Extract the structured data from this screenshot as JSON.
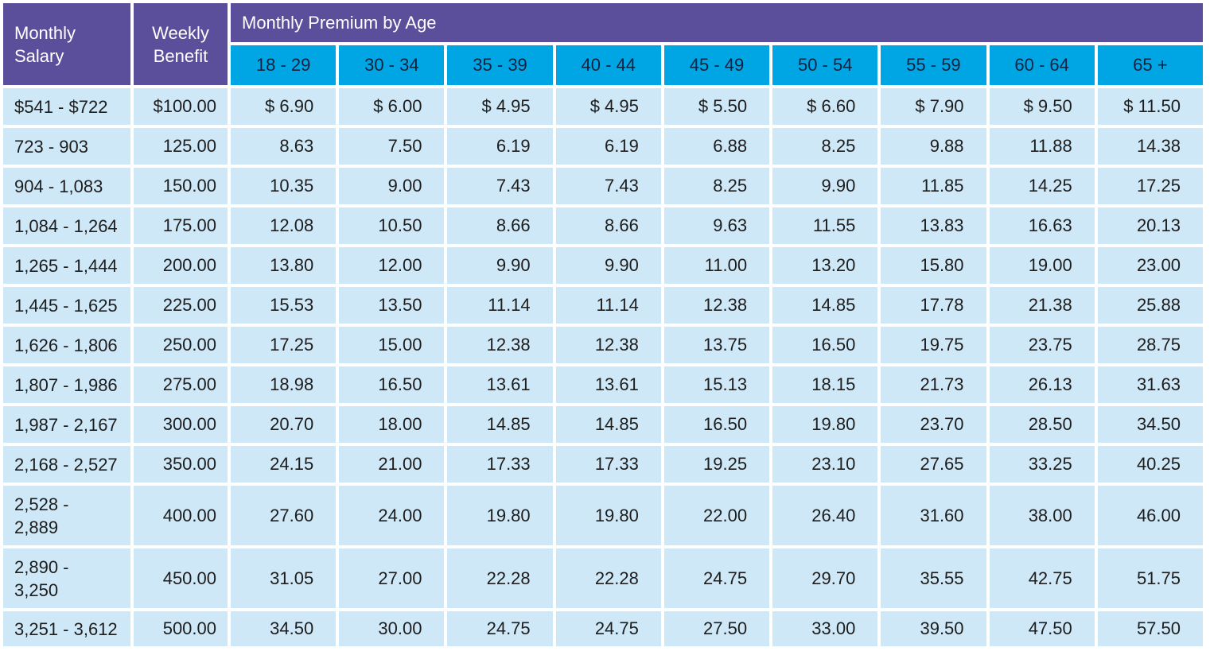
{
  "header": {
    "salary_label": "Monthly Salary",
    "benefit_label": "Weekly Benefit",
    "group_label": "Monthly Premium by Age",
    "age_bands": [
      "18 - 29",
      "30 - 34",
      "35 - 39",
      "40 - 44",
      "45 - 49",
      "50 - 54",
      "55 - 59",
      "60 - 64",
      "65 +"
    ]
  },
  "rows": [
    {
      "salary": "$541 - $722",
      "benefit": "$100.00",
      "premiums": [
        "$ 6.90",
        "$ 6.00",
        "$ 4.95",
        "$ 4.95",
        "$ 5.50",
        "$ 6.60",
        "$ 7.90",
        "$ 9.50",
        "$ 11.50"
      ]
    },
    {
      "salary": "723 - 903",
      "benefit": "125.00",
      "premiums": [
        "8.63",
        "7.50",
        "6.19",
        "6.19",
        "6.88",
        "8.25",
        "9.88",
        "11.88",
        "14.38"
      ]
    },
    {
      "salary": "904 - 1,083",
      "benefit": "150.00",
      "premiums": [
        "10.35",
        "9.00",
        "7.43",
        "7.43",
        "8.25",
        "9.90",
        "11.85",
        "14.25",
        "17.25"
      ]
    },
    {
      "salary": "1,084 - 1,264",
      "benefit": "175.00",
      "premiums": [
        "12.08",
        "10.50",
        "8.66",
        "8.66",
        "9.63",
        "11.55",
        "13.83",
        "16.63",
        "20.13"
      ]
    },
    {
      "salary": "1,265 - 1,444",
      "benefit": "200.00",
      "premiums": [
        "13.80",
        "12.00",
        "9.90",
        "9.90",
        "11.00",
        "13.20",
        "15.80",
        "19.00",
        "23.00"
      ]
    },
    {
      "salary": "1,445 - 1,625",
      "benefit": "225.00",
      "premiums": [
        "15.53",
        "13.50",
        "11.14",
        "11.14",
        "12.38",
        "14.85",
        "17.78",
        "21.38",
        "25.88"
      ]
    },
    {
      "salary": "1,626 - 1,806",
      "benefit": "250.00",
      "premiums": [
        "17.25",
        "15.00",
        "12.38",
        "12.38",
        "13.75",
        "16.50",
        "19.75",
        "23.75",
        "28.75"
      ]
    },
    {
      "salary": "1,807 - 1,986",
      "benefit": "275.00",
      "premiums": [
        "18.98",
        "16.50",
        "13.61",
        "13.61",
        "15.13",
        "18.15",
        "21.73",
        "26.13",
        "31.63"
      ]
    },
    {
      "salary": "1,987 - 2,167",
      "benefit": "300.00",
      "premiums": [
        "20.70",
        "18.00",
        "14.85",
        "14.85",
        "16.50",
        "19.80",
        "23.70",
        "28.50",
        "34.50"
      ]
    },
    {
      "salary": "2,168 - 2,527",
      "benefit": "350.00",
      "premiums": [
        "24.15",
        "21.00",
        "17.33",
        "17.33",
        "19.25",
        "23.10",
        "27.65",
        "33.25",
        "40.25"
      ]
    },
    {
      "salary": "2,528 - 2,889",
      "benefit": "400.00",
      "premiums": [
        "27.60",
        "24.00",
        "19.80",
        "19.80",
        "22.00",
        "26.40",
        "31.60",
        "38.00",
        "46.00"
      ]
    },
    {
      "salary": "2,890 - 3,250",
      "benefit": "450.00",
      "premiums": [
        "31.05",
        "27.00",
        "22.28",
        "22.28",
        "24.75",
        "29.70",
        "35.55",
        "42.75",
        "51.75"
      ]
    },
    {
      "salary": "3,251 - 3,612",
      "benefit": "500.00",
      "premiums": [
        "34.50",
        "30.00",
        "24.75",
        "24.75",
        "27.50",
        "33.00",
        "39.50",
        "47.50",
        "57.50"
      ]
    }
  ],
  "colors": {
    "header_purple": "#5b4f9b",
    "header_blue": "#00a6e4",
    "cell_light_blue": "#cfe8f7"
  }
}
